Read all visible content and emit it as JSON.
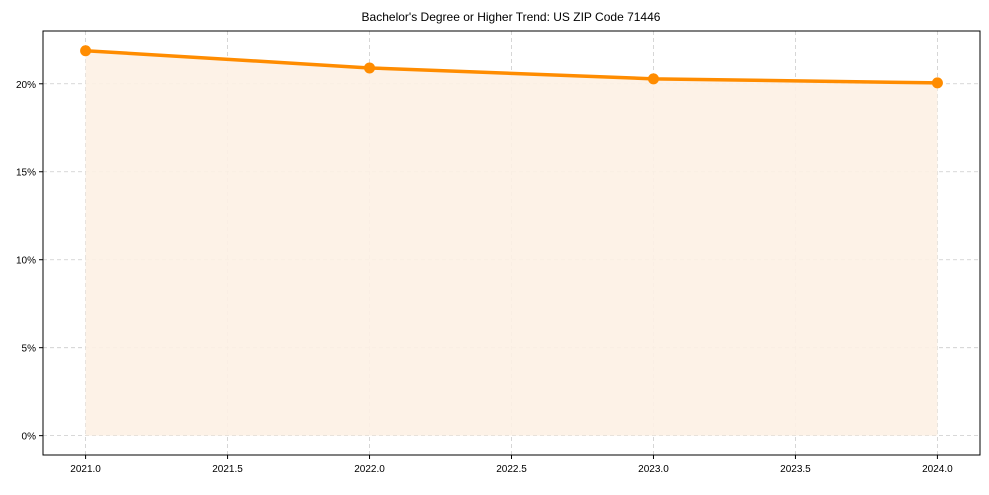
{
  "chart_data": {
    "type": "line",
    "title": "Bachelor's Degree or Higher Trend: US ZIP Code 71446",
    "xlabel": "",
    "ylabel": "",
    "x": [
      2021,
      2022,
      2023,
      2024
    ],
    "series": [
      {
        "name": "Bachelor's Degree or Higher",
        "values": [
          21.88,
          20.9,
          20.28,
          20.05
        ],
        "color": "#ff8c00"
      }
    ],
    "xlim": [
      2020.85,
      2024.15
    ],
    "ylim": [
      -1.1,
      23.0
    ],
    "xticks": [
      2021.0,
      2021.5,
      2022.0,
      2022.5,
      2023.0,
      2023.5,
      2024.0
    ],
    "xtick_labels": [
      "2021.0",
      "2021.5",
      "2022.0",
      "2022.5",
      "2023.0",
      "2023.5",
      "2024.0"
    ],
    "yticks": [
      0,
      5,
      10,
      15,
      20
    ],
    "ytick_labels": [
      "0%",
      "5%",
      "10%",
      "15%",
      "20%"
    ],
    "grid": true,
    "fill_under": true,
    "fill_color": "#fdf1e4"
  }
}
